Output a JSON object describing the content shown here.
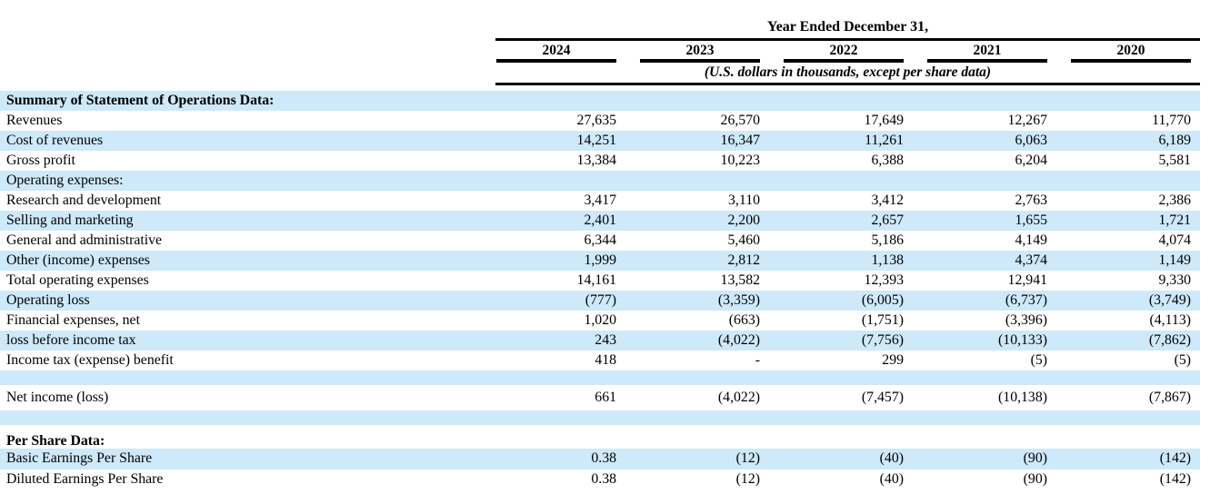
{
  "header": {
    "title": "Year Ended December 31,",
    "years": [
      "2024",
      "2023",
      "2022",
      "2021",
      "2020"
    ],
    "subtitle": "(U.S. dollars in thousands, except per share data)"
  },
  "colors": {
    "row_highlight": "#cde9fa",
    "text": "#000000",
    "rule": "#000000"
  },
  "table": {
    "rows": [
      {
        "label": "Summary of Statement of Operations Data:",
        "bold": true,
        "highlight": true,
        "values": [
          "",
          "",
          "",
          "",
          ""
        ]
      },
      {
        "label": "Revenues",
        "bold": false,
        "highlight": false,
        "values": [
          "27,635",
          "26,570",
          "17,649",
          "12,267",
          "11,770"
        ]
      },
      {
        "label": "Cost of revenues",
        "bold": false,
        "highlight": true,
        "values": [
          "14,251",
          "16,347",
          "11,261",
          "6,063",
          "6,189"
        ]
      },
      {
        "label": "Gross profit",
        "bold": false,
        "highlight": false,
        "values": [
          "13,384",
          "10,223",
          "6,388",
          "6,204",
          "5,581"
        ]
      },
      {
        "label": "Operating expenses:",
        "bold": false,
        "highlight": true,
        "values": [
          "",
          "",
          "",
          "",
          ""
        ]
      },
      {
        "label": "Research and development",
        "bold": false,
        "highlight": false,
        "values": [
          "3,417",
          "3,110",
          "3,412",
          "2,763",
          "2,386"
        ]
      },
      {
        "label": "Selling and marketing",
        "bold": false,
        "highlight": true,
        "values": [
          "2,401",
          "2,200",
          "2,657",
          "1,655",
          "1,721"
        ]
      },
      {
        "label": "General and administrative",
        "bold": false,
        "highlight": false,
        "values": [
          "6,344",
          "5,460",
          "5,186",
          "4,149",
          "4,074"
        ]
      },
      {
        "label": "Other (income) expenses",
        "bold": false,
        "highlight": true,
        "values": [
          "1,999",
          "2,812",
          "1,138",
          "4,374",
          "1,149"
        ]
      },
      {
        "label": "Total operating expenses",
        "bold": false,
        "highlight": false,
        "values": [
          "14,161",
          "13,582",
          "12,393",
          "12,941",
          "9,330"
        ]
      },
      {
        "label": "Operating loss",
        "bold": false,
        "highlight": true,
        "values": [
          "(777)",
          "(3,359)",
          "(6,005)",
          "(6,737)",
          "(3,749)"
        ]
      },
      {
        "label": "Financial expenses, net",
        "bold": false,
        "highlight": false,
        "values": [
          "1,020",
          "(663)",
          "(1,751)",
          "(3,396)",
          "(4,113)"
        ]
      },
      {
        "label": "loss before income tax",
        "bold": false,
        "highlight": true,
        "values": [
          "243",
          "(4,022)",
          "(7,756)",
          "(10,133)",
          "(7,862)"
        ]
      },
      {
        "label": "Income tax (expense) benefit",
        "bold": false,
        "highlight": false,
        "values": [
          "418",
          "-",
          "299",
          "(5)",
          "(5)"
        ]
      },
      {
        "label": "",
        "bold": false,
        "highlight": true,
        "height": 16,
        "values": [
          "",
          "",
          "",
          "",
          ""
        ]
      },
      {
        "label": "Net income (loss)",
        "bold": false,
        "highlight": false,
        "height": 28,
        "values": [
          "661",
          "(4,022)",
          "(7,457)",
          "(10,138)",
          "(7,867)"
        ]
      },
      {
        "label": "",
        "bold": false,
        "highlight": true,
        "height": 16,
        "values": [
          "",
          "",
          "",
          "",
          ""
        ]
      },
      {
        "label": "",
        "bold": false,
        "highlight": false,
        "height": 9,
        "values": [
          "",
          "",
          "",
          "",
          ""
        ]
      },
      {
        "label": "Per Share Data:",
        "bold": true,
        "highlight": false,
        "height": 17,
        "values": [
          "",
          "",
          "",
          "",
          ""
        ]
      },
      {
        "label": "Basic Earnings Per Share",
        "bold": false,
        "highlight": true,
        "height": 22.5,
        "values": [
          "0.38",
          "(12)",
          "(40)",
          "(90)",
          "(142)"
        ]
      },
      {
        "label": "Diluted Earnings Per Share",
        "bold": false,
        "highlight": false,
        "height": 22.5,
        "values": [
          "0.38",
          "(12)",
          "(40)",
          "(90)",
          "(142)"
        ]
      }
    ]
  }
}
